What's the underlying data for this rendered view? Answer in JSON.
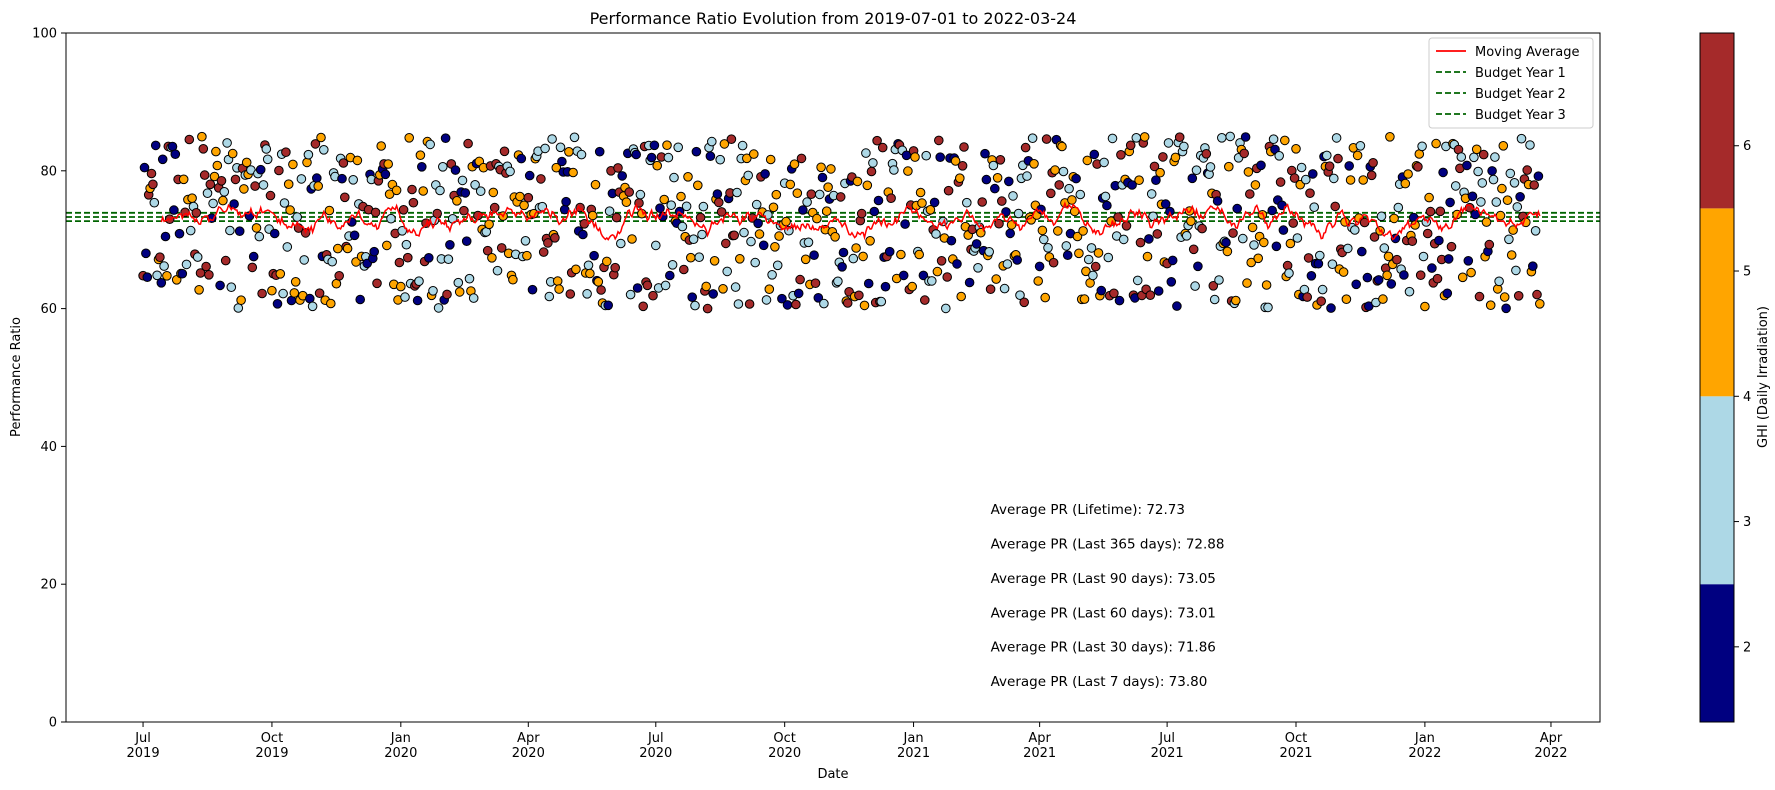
{
  "chart_data": {
    "type": "scatter",
    "title": "Performance Ratio Evolution from 2019-07-01 to 2022-03-24",
    "xlabel": "Date",
    "ylabel": "Performance Ratio",
    "xlim": [
      "2019-05-07",
      "2022-05-06"
    ],
    "ylim": [
      0,
      100
    ],
    "y_ticks": [
      0,
      20,
      40,
      60,
      80,
      100
    ],
    "x_ticks": [
      {
        "date": "2019-07-01",
        "month": "Jul",
        "year": "2019"
      },
      {
        "date": "2019-10-01",
        "month": "Oct",
        "year": "2019"
      },
      {
        "date": "2020-01-01",
        "month": "Jan",
        "year": "2020"
      },
      {
        "date": "2020-04-01",
        "month": "Apr",
        "year": "2020"
      },
      {
        "date": "2020-07-01",
        "month": "Jul",
        "year": "2020"
      },
      {
        "date": "2020-10-01",
        "month": "Oct",
        "year": "2020"
      },
      {
        "date": "2021-01-01",
        "month": "Jan",
        "year": "2021"
      },
      {
        "date": "2021-04-01",
        "month": "Apr",
        "year": "2021"
      },
      {
        "date": "2021-07-01",
        "month": "Jul",
        "year": "2021"
      },
      {
        "date": "2021-10-01",
        "month": "Oct",
        "year": "2021"
      },
      {
        "date": "2022-01-01",
        "month": "Jan",
        "year": "2022"
      },
      {
        "date": "2022-04-01",
        "month": "Apr",
        "year": "2022"
      }
    ],
    "scatter": {
      "start_date": "2019-07-01",
      "end_date": "2022-03-24",
      "pr_range": [
        60,
        85
      ],
      "color_by": "GHI (Daily Irradiation)"
    },
    "moving_average": {
      "name": "Moving Average",
      "color": "#ff0000",
      "mean": 72.7
    },
    "budget_lines": [
      {
        "name": "Budget Year 1",
        "value": 73.9,
        "color": "#006400"
      },
      {
        "name": "Budget Year 2",
        "value": 73.3,
        "color": "#006400"
      },
      {
        "name": "Budget Year 3",
        "value": 72.7,
        "color": "#006400"
      }
    ],
    "colorbar": {
      "label": "GHI (Daily Irradiation)",
      "range": [
        1.4,
        6.9
      ],
      "ticks": [
        2,
        3,
        4,
        5,
        6
      ],
      "bins": [
        {
          "from": 1.4,
          "to": 2.5,
          "color": "#000080"
        },
        {
          "from": 2.5,
          "to": 4.0,
          "color": "#add8e6"
        },
        {
          "from": 4.0,
          "to": 5.5,
          "color": "#ffa500"
        },
        {
          "from": 5.5,
          "to": 6.9,
          "color": "#a52a2a"
        }
      ]
    },
    "legend_position": "top-right",
    "annotations": [
      {
        "text": "Average PR (Lifetime): 72.73",
        "y": 30.2
      },
      {
        "text": "Average PR (Last 365 days): 72.88",
        "y": 25.2
      },
      {
        "text": "Average PR (Last 90 days): 73.05",
        "y": 20.2
      },
      {
        "text": "Average PR (Last 60 days): 73.01",
        "y": 15.2
      },
      {
        "text": "Average PR (Last 30 days): 71.86",
        "y": 10.2
      },
      {
        "text": "Average PR (Last 7 days): 73.80",
        "y": 5.2
      }
    ],
    "annotation_x": "2021-02-25"
  }
}
